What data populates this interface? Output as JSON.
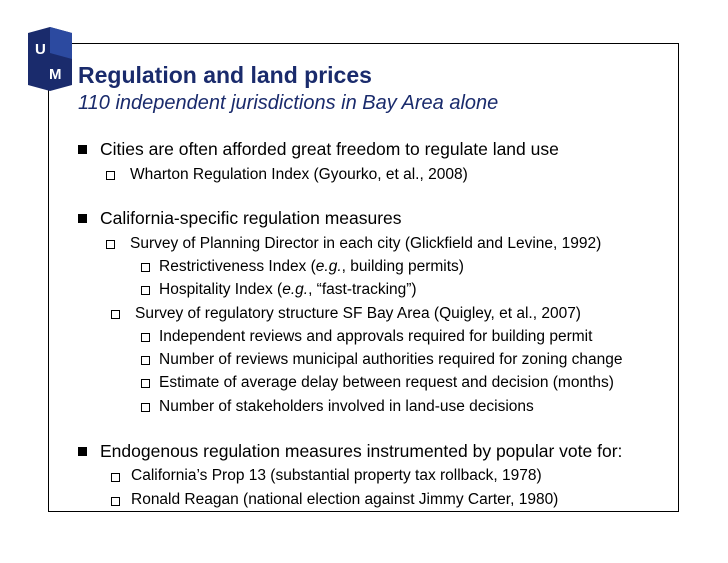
{
  "slide": {
    "title": "Regulation and land prices",
    "subtitle": "110 independent jurisdictions in Bay Area alone",
    "logo": {
      "text": "UM",
      "icon": "um-logo-icon",
      "color": "#1a2b6c"
    },
    "bullets": {
      "b1": "Cities are often afforded great freedom to regulate land use",
      "b1_1": "Wharton Regulation Index (Gyourko, et al., 2008)",
      "b2": "California-specific regulation measures",
      "b2_1": "Survey of Planning Director in each city (Glickfield and Levine, 1992)",
      "b2_1_1_pre": "Restrictiveness Index (",
      "b2_1_1_it": "e.g.",
      "b2_1_1_post": ", building permits)",
      "b2_1_2_pre": "Hospitality Index (",
      "b2_1_2_it": "e.g.",
      "b2_1_2_post": ", “fast-tracking”)",
      "b2_2": "Survey of regulatory structure SF Bay Area (Quigley, et al., 2007)",
      "b2_2_1": "Independent reviews and approvals required for building permit",
      "b2_2_2": "Number of reviews municipal authorities required for zoning change",
      "b2_2_3": "Estimate of average delay between request and decision (months)",
      "b2_2_4": "Number of stakeholders involved in land-use decisions",
      "b3": "Endogenous regulation measures instrumented by popular vote for:",
      "b3_1": "California’s Prop 13 (substantial property tax rollback, 1978)",
      "b3_2": "Ronald Reagan (national election against Jimmy Carter, 1980)"
    }
  }
}
